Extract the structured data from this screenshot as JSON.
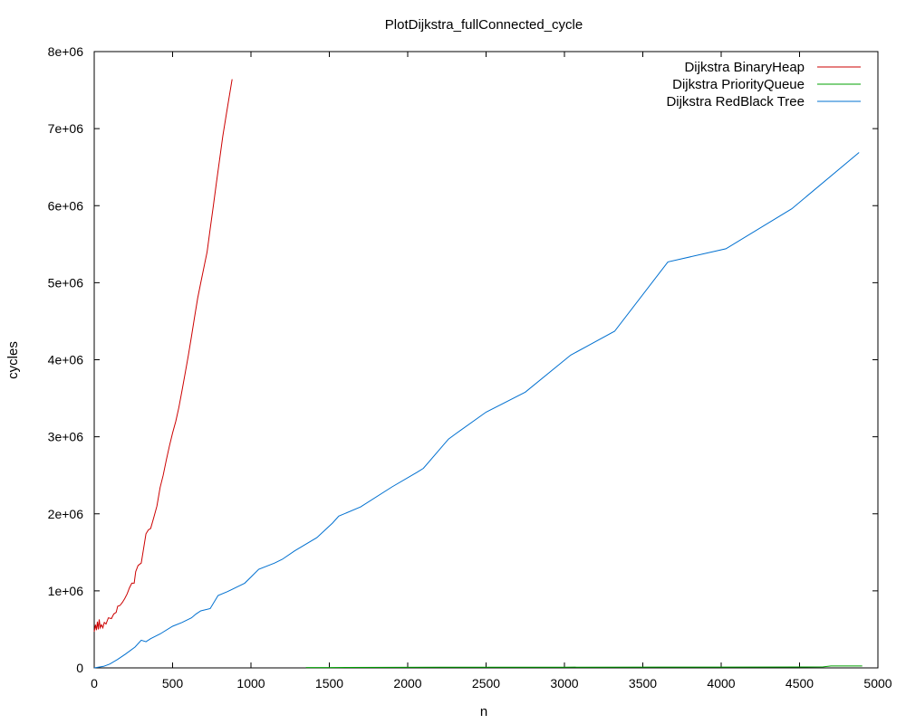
{
  "chart_data": {
    "type": "line",
    "title": "PlotDijkstra_fullConnected_cycle",
    "xlabel": "n",
    "ylabel": "cycles",
    "xlim": [
      0,
      5000
    ],
    "ylim": [
      0,
      8000000
    ],
    "x_ticks": [
      0,
      500,
      1000,
      1500,
      2000,
      2500,
      3000,
      3500,
      4000,
      4500,
      5000
    ],
    "x_tick_labels": [
      "0",
      "500",
      "1000",
      "1500",
      "2000",
      "2500",
      "3000",
      "3500",
      "4000",
      "4500",
      "5000"
    ],
    "y_ticks": [
      0,
      1000000,
      2000000,
      3000000,
      4000000,
      5000000,
      6000000,
      7000000,
      8000000
    ],
    "y_tick_labels": [
      "0",
      "1e+06",
      "2e+06",
      "3e+06",
      "4e+06",
      "5e+06",
      "6e+06",
      "7e+06",
      "8e+06"
    ],
    "grid": false,
    "legend_position": "top-right",
    "series": [
      {
        "name": "Dijkstra BinaryHeap",
        "color": "#cc0000",
        "points": [
          [
            0,
            470000
          ],
          [
            8,
            560000
          ],
          [
            14,
            490000
          ],
          [
            20,
            600000
          ],
          [
            26,
            500000
          ],
          [
            32,
            630000
          ],
          [
            38,
            520000
          ],
          [
            46,
            560000
          ],
          [
            55,
            520000
          ],
          [
            64,
            590000
          ],
          [
            75,
            570000
          ],
          [
            90,
            650000
          ],
          [
            110,
            640000
          ],
          [
            125,
            700000
          ],
          [
            140,
            720000
          ],
          [
            150,
            800000
          ],
          [
            165,
            810000
          ],
          [
            180,
            850000
          ],
          [
            195,
            900000
          ],
          [
            210,
            960000
          ],
          [
            225,
            1040000
          ],
          [
            240,
            1100000
          ],
          [
            255,
            1100000
          ],
          [
            265,
            1250000
          ],
          [
            280,
            1330000
          ],
          [
            300,
            1360000
          ],
          [
            315,
            1550000
          ],
          [
            330,
            1740000
          ],
          [
            345,
            1790000
          ],
          [
            360,
            1810000
          ],
          [
            380,
            1950000
          ],
          [
            400,
            2100000
          ],
          [
            420,
            2340000
          ],
          [
            440,
            2500000
          ],
          [
            460,
            2700000
          ],
          [
            480,
            2880000
          ],
          [
            500,
            3050000
          ],
          [
            520,
            3200000
          ],
          [
            540,
            3380000
          ],
          [
            560,
            3600000
          ],
          [
            580,
            3820000
          ],
          [
            600,
            4050000
          ],
          [
            620,
            4300000
          ],
          [
            640,
            4550000
          ],
          [
            660,
            4800000
          ],
          [
            680,
            5000000
          ],
          [
            700,
            5200000
          ],
          [
            720,
            5400000
          ],
          [
            740,
            5700000
          ],
          [
            760,
            6000000
          ],
          [
            780,
            6300000
          ],
          [
            800,
            6600000
          ],
          [
            820,
            6900000
          ],
          [
            840,
            7150000
          ],
          [
            860,
            7400000
          ],
          [
            880,
            7640000
          ]
        ]
      },
      {
        "name": "Dijkstra PriorityQueue",
        "color": "#00a000",
        "points": [
          [
            1350,
            5000
          ],
          [
            1500,
            5000
          ],
          [
            2200,
            8000
          ],
          [
            2600,
            8000
          ],
          [
            3000,
            9000
          ],
          [
            3600,
            10000
          ],
          [
            4000,
            10000
          ],
          [
            4500,
            12000
          ],
          [
            4650,
            13000
          ],
          [
            4700,
            25000
          ],
          [
            4900,
            25000
          ]
        ]
      },
      {
        "name": "Dijkstra RedBlack Tree",
        "color": "#0070d0",
        "points": [
          [
            0,
            0
          ],
          [
            60,
            20000
          ],
          [
            100,
            50000
          ],
          [
            150,
            110000
          ],
          [
            200,
            180000
          ],
          [
            260,
            270000
          ],
          [
            300,
            360000
          ],
          [
            330,
            340000
          ],
          [
            360,
            380000
          ],
          [
            420,
            440000
          ],
          [
            500,
            540000
          ],
          [
            560,
            590000
          ],
          [
            620,
            650000
          ],
          [
            650,
            700000
          ],
          [
            680,
            740000
          ],
          [
            740,
            770000
          ],
          [
            790,
            940000
          ],
          [
            850,
            990000
          ],
          [
            920,
            1060000
          ],
          [
            960,
            1100000
          ],
          [
            1000,
            1180000
          ],
          [
            1050,
            1280000
          ],
          [
            1150,
            1360000
          ],
          [
            1200,
            1410000
          ],
          [
            1280,
            1520000
          ],
          [
            1420,
            1690000
          ],
          [
            1520,
            1880000
          ],
          [
            1560,
            1970000
          ],
          [
            1700,
            2090000
          ],
          [
            1900,
            2350000
          ],
          [
            2060,
            2540000
          ],
          [
            2100,
            2590000
          ],
          [
            2260,
            2970000
          ],
          [
            2300,
            3030000
          ],
          [
            2500,
            3320000
          ],
          [
            2750,
            3580000
          ],
          [
            3040,
            4060000
          ],
          [
            3320,
            4370000
          ],
          [
            3660,
            5270000
          ],
          [
            4030,
            5440000
          ],
          [
            4450,
            5960000
          ],
          [
            4880,
            6690000
          ]
        ]
      }
    ]
  }
}
